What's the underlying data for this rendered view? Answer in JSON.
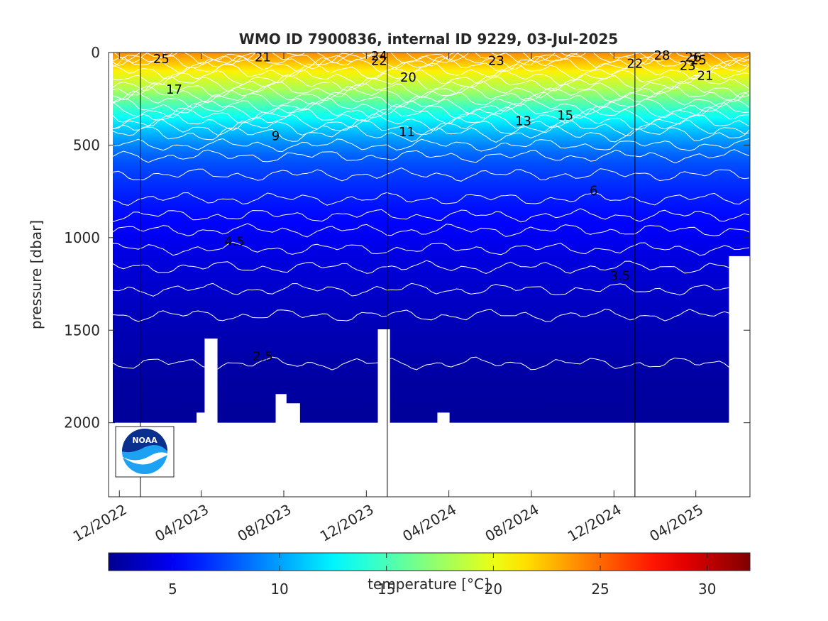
{
  "chart_data": {
    "type": "heatmap",
    "title": "WMO ID 7900836, internal ID 9229, 03-Jul-2025",
    "ylabel": "pressure [dbar]",
    "xlabel": "",
    "ylim": [
      0,
      2400
    ],
    "y_reversed": true,
    "y_ticks": [
      0,
      500,
      1000,
      1500,
      2000
    ],
    "y_tick_labels": [
      "0",
      "500",
      "1000",
      "1500",
      "2000"
    ],
    "x_start": "2022-11-15",
    "x_end": "2025-06-20",
    "x_ticks": [
      "2022-12-01",
      "2023-04-01",
      "2023-08-01",
      "2023-12-01",
      "2024-04-01",
      "2024-08-01",
      "2024-12-01",
      "2025-04-01"
    ],
    "x_tick_labels": [
      "12/2022",
      "04/2023",
      "08/2023",
      "12/2023",
      "04/2024",
      "08/2024",
      "12/2024",
      "04/2025"
    ],
    "year_boundaries": [
      "2023-01-01",
      "2024-01-01",
      "2025-01-01"
    ],
    "max_profile_pressure": 2000,
    "colorbar": {
      "label": "temperature [°C]",
      "range": [
        2,
        32
      ],
      "ticks": [
        5,
        10,
        15,
        20,
        25,
        30
      ],
      "tick_labels": [
        "5",
        "10",
        "15",
        "20",
        "25",
        "30"
      ],
      "colormap": [
        "#00008f",
        "#0000ff",
        "#00ffff",
        "#ffff00",
        "#ff0000",
        "#800000"
      ]
    },
    "temperature_profile": {
      "pressure": [
        0,
        50,
        100,
        200,
        300,
        350,
        400,
        450,
        500,
        550,
        600,
        700,
        800,
        900,
        1000,
        1100,
        1200,
        1300,
        1400,
        1500,
        1600,
        1700,
        1800,
        1900,
        2000
      ],
      "temperature": [
        24,
        22.5,
        21,
        18,
        14.5,
        13,
        11.5,
        10.3,
        9.2,
        8.3,
        7.6,
        6.7,
        6,
        5.4,
        4.9,
        4.4,
        4,
        3.7,
        3.4,
        3.1,
        2.9,
        2.7,
        2.5,
        2.4,
        2.3
      ]
    },
    "contour_labels": [
      {
        "text": "25",
        "date": "2023-02-01",
        "pressure": 35
      },
      {
        "text": "21",
        "date": "2023-07-01",
        "pressure": 25
      },
      {
        "text": "24",
        "date": "2023-12-20",
        "pressure": 20
      },
      {
        "text": "22",
        "date": "2023-12-20",
        "pressure": 45
      },
      {
        "text": "20",
        "date": "2024-02-01",
        "pressure": 135
      },
      {
        "text": "23",
        "date": "2024-06-10",
        "pressure": 45
      },
      {
        "text": "22",
        "date": "2025-01-01",
        "pressure": 60
      },
      {
        "text": "28",
        "date": "2025-02-10",
        "pressure": 15
      },
      {
        "text": "26",
        "date": "2025-03-28",
        "pressure": 25
      },
      {
        "text": "25",
        "date": "2025-04-05",
        "pressure": 40
      },
      {
        "text": "23",
        "date": "2025-03-20",
        "pressure": 70
      },
      {
        "text": "21",
        "date": "2025-04-15",
        "pressure": 125
      },
      {
        "text": "17",
        "date": "2023-02-20",
        "pressure": 200
      },
      {
        "text": "15",
        "date": "2024-09-20",
        "pressure": 340
      },
      {
        "text": "13",
        "date": "2024-07-20",
        "pressure": 370
      },
      {
        "text": "11",
        "date": "2024-01-30",
        "pressure": 430
      },
      {
        "text": "9",
        "date": "2023-07-20",
        "pressure": 450
      },
      {
        "text": "6",
        "date": "2024-11-01",
        "pressure": 745
      },
      {
        "text": "4.5",
        "date": "2023-05-20",
        "pressure": 1020
      },
      {
        "text": "3.5",
        "date": "2024-12-10",
        "pressure": 1205
      },
      {
        "text": "2.5",
        "date": "2023-07-01",
        "pressure": 1640
      }
    ],
    "contour_levels": [
      {
        "level": "25",
        "pressure": 10
      },
      {
        "level": "24",
        "pressure": 25
      },
      {
        "level": "23",
        "pressure": 45
      },
      {
        "level": "22",
        "pressure": 65
      },
      {
        "level": "21",
        "pressure": 100
      },
      {
        "level": "20",
        "pressure": 135
      },
      {
        "level": "19",
        "pressure": 165
      },
      {
        "level": "18",
        "pressure": 200
      },
      {
        "level": "17",
        "pressure": 225
      },
      {
        "level": "16",
        "pressure": 255
      },
      {
        "level": "15",
        "pressure": 290
      },
      {
        "level": "14",
        "pressure": 315
      },
      {
        "level": "13",
        "pressure": 340
      },
      {
        "level": "12",
        "pressure": 375
      },
      {
        "level": "11",
        "pressure": 405
      },
      {
        "level": "10",
        "pressure": 440
      },
      {
        "level": "9",
        "pressure": 500
      },
      {
        "level": "8",
        "pressure": 560
      },
      {
        "level": "7",
        "pressure": 660
      },
      {
        "level": "6",
        "pressure": 790
      },
      {
        "level": "5.5",
        "pressure": 880
      },
      {
        "level": "5",
        "pressure": 960
      },
      {
        "level": "4.5",
        "pressure": 1060
      },
      {
        "level": "4",
        "pressure": 1160
      },
      {
        "level": "3.5",
        "pressure": 1280
      },
      {
        "level": "3",
        "pressure": 1420
      },
      {
        "level": "2.5",
        "pressure": 1680
      }
    ],
    "shallow_profiles": [
      {
        "start": "2023-03-25",
        "end": "2023-04-06",
        "max_pressure": 1945
      },
      {
        "start": "2023-04-06",
        "end": "2023-04-25",
        "max_pressure": 1545
      },
      {
        "start": "2023-07-20",
        "end": "2023-08-05",
        "max_pressure": 1845
      },
      {
        "start": "2023-08-05",
        "end": "2023-08-25",
        "max_pressure": 1895
      },
      {
        "start": "2023-08-25",
        "end": "2023-09-20",
        "max_pressure": 2000
      },
      {
        "start": "2023-12-18",
        "end": "2024-01-05",
        "max_pressure": 1495
      },
      {
        "start": "2024-03-15",
        "end": "2024-04-02",
        "max_pressure": 1945
      },
      {
        "start": "2025-05-12",
        "end": "2025-05-20",
        "max_pressure": 2000
      },
      {
        "start": "2025-05-20",
        "end": "2025-06-20",
        "max_pressure": 1100
      }
    ]
  },
  "logo": {
    "text": "NOAA",
    "name": "noaa-logo",
    "colors": [
      "#0a2f8f",
      "#1da1f2",
      "#ffffff"
    ]
  }
}
